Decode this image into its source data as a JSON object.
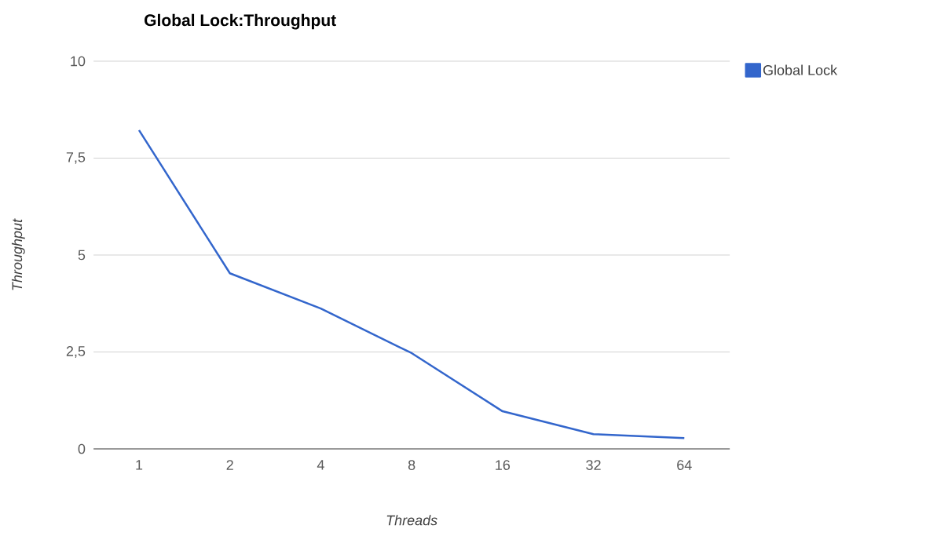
{
  "chart_data": {
    "type": "line",
    "title": "Global Lock:Throughput",
    "xlabel": "Threads",
    "ylabel": "Throughput",
    "categories": [
      "1",
      "2",
      "4",
      "8",
      "16",
      "32",
      "64"
    ],
    "series": [
      {
        "name": "Global Lock",
        "color": "#3366cc",
        "values": [
          8.22,
          4.53,
          3.62,
          2.47,
          0.97,
          0.38,
          0.28
        ]
      }
    ],
    "ylim": [
      0,
      10
    ],
    "yticks": [
      0,
      {
        "value": 2.5,
        "label": "2,5"
      },
      5,
      {
        "value": 7.5,
        "label": "7,5"
      },
      10
    ],
    "grid": "y",
    "legend": "top right",
    "marker": "none",
    "line_style": "solid"
  }
}
